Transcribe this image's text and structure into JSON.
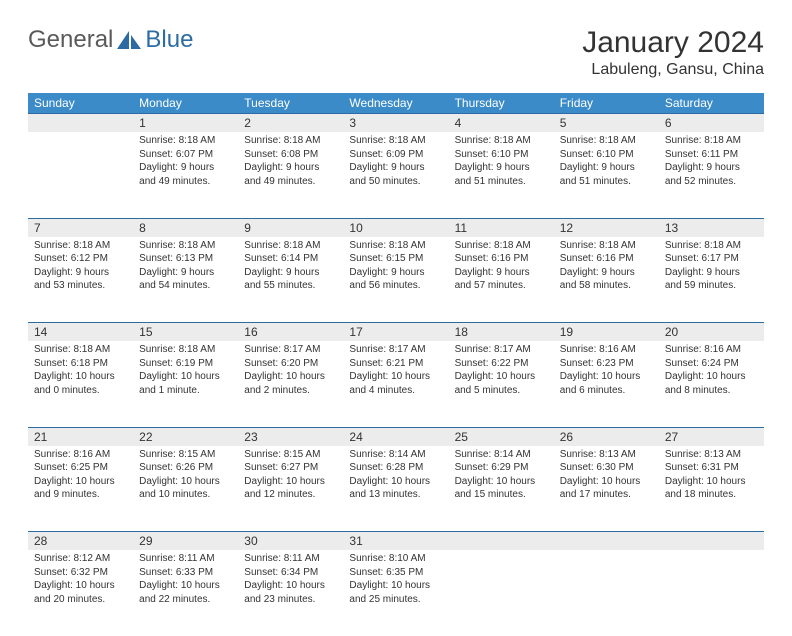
{
  "brand": {
    "part1": "General",
    "part2": "Blue"
  },
  "title": "January 2024",
  "location": "Labuleng, Gansu, China",
  "colors": {
    "header_bg": "#3b8bc9",
    "header_text": "#ffffff",
    "border": "#2d6ca2",
    "daynum_bg": "#ececec",
    "text": "#333333",
    "logo_gray": "#5a5a5a",
    "logo_blue": "#2d6ca2",
    "background": "#ffffff"
  },
  "fonts": {
    "title_size": 30,
    "location_size": 16,
    "weekday_size": 12,
    "daynum_size": 12,
    "body_size": 10
  },
  "weekdays": [
    "Sunday",
    "Monday",
    "Tuesday",
    "Wednesday",
    "Thursday",
    "Friday",
    "Saturday"
  ],
  "weeks": [
    [
      null,
      {
        "n": "1",
        "sunrise": "Sunrise: 8:18 AM",
        "sunset": "Sunset: 6:07 PM",
        "day1": "Daylight: 9 hours",
        "day2": "and 49 minutes."
      },
      {
        "n": "2",
        "sunrise": "Sunrise: 8:18 AM",
        "sunset": "Sunset: 6:08 PM",
        "day1": "Daylight: 9 hours",
        "day2": "and 49 minutes."
      },
      {
        "n": "3",
        "sunrise": "Sunrise: 8:18 AM",
        "sunset": "Sunset: 6:09 PM",
        "day1": "Daylight: 9 hours",
        "day2": "and 50 minutes."
      },
      {
        "n": "4",
        "sunrise": "Sunrise: 8:18 AM",
        "sunset": "Sunset: 6:10 PM",
        "day1": "Daylight: 9 hours",
        "day2": "and 51 minutes."
      },
      {
        "n": "5",
        "sunrise": "Sunrise: 8:18 AM",
        "sunset": "Sunset: 6:10 PM",
        "day1": "Daylight: 9 hours",
        "day2": "and 51 minutes."
      },
      {
        "n": "6",
        "sunrise": "Sunrise: 8:18 AM",
        "sunset": "Sunset: 6:11 PM",
        "day1": "Daylight: 9 hours",
        "day2": "and 52 minutes."
      }
    ],
    [
      {
        "n": "7",
        "sunrise": "Sunrise: 8:18 AM",
        "sunset": "Sunset: 6:12 PM",
        "day1": "Daylight: 9 hours",
        "day2": "and 53 minutes."
      },
      {
        "n": "8",
        "sunrise": "Sunrise: 8:18 AM",
        "sunset": "Sunset: 6:13 PM",
        "day1": "Daylight: 9 hours",
        "day2": "and 54 minutes."
      },
      {
        "n": "9",
        "sunrise": "Sunrise: 8:18 AM",
        "sunset": "Sunset: 6:14 PM",
        "day1": "Daylight: 9 hours",
        "day2": "and 55 minutes."
      },
      {
        "n": "10",
        "sunrise": "Sunrise: 8:18 AM",
        "sunset": "Sunset: 6:15 PM",
        "day1": "Daylight: 9 hours",
        "day2": "and 56 minutes."
      },
      {
        "n": "11",
        "sunrise": "Sunrise: 8:18 AM",
        "sunset": "Sunset: 6:16 PM",
        "day1": "Daylight: 9 hours",
        "day2": "and 57 minutes."
      },
      {
        "n": "12",
        "sunrise": "Sunrise: 8:18 AM",
        "sunset": "Sunset: 6:16 PM",
        "day1": "Daylight: 9 hours",
        "day2": "and 58 minutes."
      },
      {
        "n": "13",
        "sunrise": "Sunrise: 8:18 AM",
        "sunset": "Sunset: 6:17 PM",
        "day1": "Daylight: 9 hours",
        "day2": "and 59 minutes."
      }
    ],
    [
      {
        "n": "14",
        "sunrise": "Sunrise: 8:18 AM",
        "sunset": "Sunset: 6:18 PM",
        "day1": "Daylight: 10 hours",
        "day2": "and 0 minutes."
      },
      {
        "n": "15",
        "sunrise": "Sunrise: 8:18 AM",
        "sunset": "Sunset: 6:19 PM",
        "day1": "Daylight: 10 hours",
        "day2": "and 1 minute."
      },
      {
        "n": "16",
        "sunrise": "Sunrise: 8:17 AM",
        "sunset": "Sunset: 6:20 PM",
        "day1": "Daylight: 10 hours",
        "day2": "and 2 minutes."
      },
      {
        "n": "17",
        "sunrise": "Sunrise: 8:17 AM",
        "sunset": "Sunset: 6:21 PM",
        "day1": "Daylight: 10 hours",
        "day2": "and 4 minutes."
      },
      {
        "n": "18",
        "sunrise": "Sunrise: 8:17 AM",
        "sunset": "Sunset: 6:22 PM",
        "day1": "Daylight: 10 hours",
        "day2": "and 5 minutes."
      },
      {
        "n": "19",
        "sunrise": "Sunrise: 8:16 AM",
        "sunset": "Sunset: 6:23 PM",
        "day1": "Daylight: 10 hours",
        "day2": "and 6 minutes."
      },
      {
        "n": "20",
        "sunrise": "Sunrise: 8:16 AM",
        "sunset": "Sunset: 6:24 PM",
        "day1": "Daylight: 10 hours",
        "day2": "and 8 minutes."
      }
    ],
    [
      {
        "n": "21",
        "sunrise": "Sunrise: 8:16 AM",
        "sunset": "Sunset: 6:25 PM",
        "day1": "Daylight: 10 hours",
        "day2": "and 9 minutes."
      },
      {
        "n": "22",
        "sunrise": "Sunrise: 8:15 AM",
        "sunset": "Sunset: 6:26 PM",
        "day1": "Daylight: 10 hours",
        "day2": "and 10 minutes."
      },
      {
        "n": "23",
        "sunrise": "Sunrise: 8:15 AM",
        "sunset": "Sunset: 6:27 PM",
        "day1": "Daylight: 10 hours",
        "day2": "and 12 minutes."
      },
      {
        "n": "24",
        "sunrise": "Sunrise: 8:14 AM",
        "sunset": "Sunset: 6:28 PM",
        "day1": "Daylight: 10 hours",
        "day2": "and 13 minutes."
      },
      {
        "n": "25",
        "sunrise": "Sunrise: 8:14 AM",
        "sunset": "Sunset: 6:29 PM",
        "day1": "Daylight: 10 hours",
        "day2": "and 15 minutes."
      },
      {
        "n": "26",
        "sunrise": "Sunrise: 8:13 AM",
        "sunset": "Sunset: 6:30 PM",
        "day1": "Daylight: 10 hours",
        "day2": "and 17 minutes."
      },
      {
        "n": "27",
        "sunrise": "Sunrise: 8:13 AM",
        "sunset": "Sunset: 6:31 PM",
        "day1": "Daylight: 10 hours",
        "day2": "and 18 minutes."
      }
    ],
    [
      {
        "n": "28",
        "sunrise": "Sunrise: 8:12 AM",
        "sunset": "Sunset: 6:32 PM",
        "day1": "Daylight: 10 hours",
        "day2": "and 20 minutes."
      },
      {
        "n": "29",
        "sunrise": "Sunrise: 8:11 AM",
        "sunset": "Sunset: 6:33 PM",
        "day1": "Daylight: 10 hours",
        "day2": "and 22 minutes."
      },
      {
        "n": "30",
        "sunrise": "Sunrise: 8:11 AM",
        "sunset": "Sunset: 6:34 PM",
        "day1": "Daylight: 10 hours",
        "day2": "and 23 minutes."
      },
      {
        "n": "31",
        "sunrise": "Sunrise: 8:10 AM",
        "sunset": "Sunset: 6:35 PM",
        "day1": "Daylight: 10 hours",
        "day2": "and 25 minutes."
      },
      null,
      null,
      null
    ]
  ]
}
